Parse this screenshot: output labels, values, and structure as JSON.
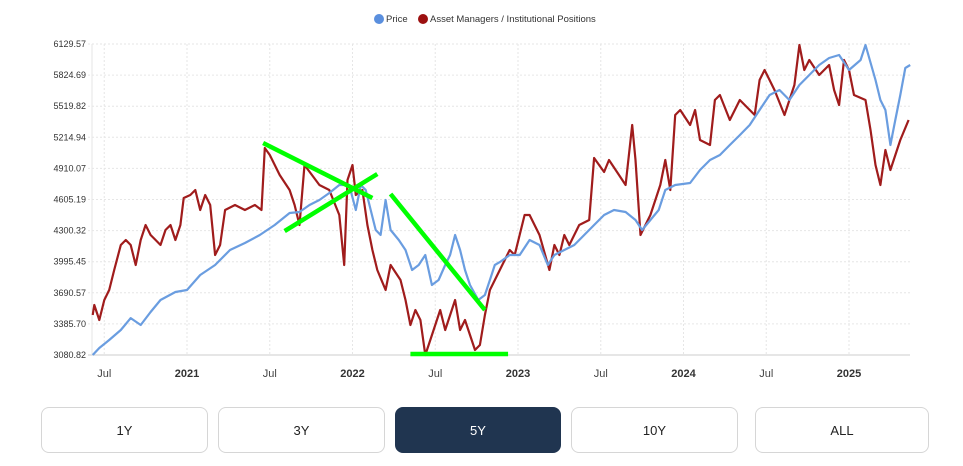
{
  "chart_data": {
    "type": "line",
    "title": "",
    "legend": {
      "placement": "top-center",
      "entries": [
        "Price",
        "Asset Managers / Institutional Positions"
      ]
    },
    "ylim": [
      3080.82,
      6129.57
    ],
    "xlim": [
      2020.426,
      2025.38
    ],
    "y_ticks": [
      "6129.57",
      "5824.69",
      "5519.82",
      "5214.94",
      "4910.07",
      "4605.19",
      "4300.32",
      "3995.45",
      "3690.57",
      "3385.70",
      "3080.82"
    ],
    "x_ticks": [
      {
        "label": "Jul",
        "x": 2020.5,
        "major": false
      },
      {
        "label": "2021",
        "x": 2021.0,
        "major": true
      },
      {
        "label": "Jul",
        "x": 2021.5,
        "major": false
      },
      {
        "label": "2022",
        "x": 2022.0,
        "major": true
      },
      {
        "label": "Jul",
        "x": 2022.5,
        "major": false
      },
      {
        "label": "2023",
        "x": 2023.0,
        "major": true
      },
      {
        "label": "Jul",
        "x": 2023.5,
        "major": false
      },
      {
        "label": "2024",
        "x": 2024.0,
        "major": true
      },
      {
        "label": "Jul",
        "x": 2024.5,
        "major": false
      },
      {
        "label": "2025",
        "x": 2025.0,
        "major": true
      }
    ],
    "grid": true,
    "series": [
      {
        "name": "Price",
        "color": "#6a9de0",
        "points": [
          [
            2020.43,
            3081
          ],
          [
            2020.47,
            3149
          ],
          [
            2020.53,
            3228
          ],
          [
            2020.6,
            3326
          ],
          [
            2020.66,
            3443
          ],
          [
            2020.72,
            3375
          ],
          [
            2020.78,
            3502
          ],
          [
            2020.84,
            3620
          ],
          [
            2020.93,
            3698
          ],
          [
            2021.0,
            3718
          ],
          [
            2021.08,
            3865
          ],
          [
            2021.17,
            3963
          ],
          [
            2021.26,
            4110
          ],
          [
            2021.35,
            4179
          ],
          [
            2021.44,
            4257
          ],
          [
            2021.53,
            4355
          ],
          [
            2021.62,
            4473
          ],
          [
            2021.68,
            4483
          ],
          [
            2021.74,
            4551
          ],
          [
            2021.8,
            4600
          ],
          [
            2021.86,
            4669
          ],
          [
            2021.92,
            4747
          ],
          [
            2021.98,
            4747
          ],
          [
            2022.02,
            4502
          ],
          [
            2022.05,
            4747
          ],
          [
            2022.08,
            4698
          ],
          [
            2022.11,
            4502
          ],
          [
            2022.14,
            4306
          ],
          [
            2022.17,
            4257
          ],
          [
            2022.2,
            4600
          ],
          [
            2022.23,
            4306
          ],
          [
            2022.28,
            4208
          ],
          [
            2022.32,
            4110
          ],
          [
            2022.36,
            3914
          ],
          [
            2022.4,
            3963
          ],
          [
            2022.44,
            4061
          ],
          [
            2022.48,
            3767
          ],
          [
            2022.52,
            3816
          ],
          [
            2022.56,
            3963
          ],
          [
            2022.59,
            4061
          ],
          [
            2022.62,
            4257
          ],
          [
            2022.65,
            4110
          ],
          [
            2022.68,
            3914
          ],
          [
            2022.71,
            3767
          ],
          [
            2022.76,
            3620
          ],
          [
            2022.8,
            3669
          ],
          [
            2022.83,
            3816
          ],
          [
            2022.86,
            3963
          ],
          [
            2022.89,
            3992
          ],
          [
            2022.95,
            4061
          ],
          [
            2023.01,
            4061
          ],
          [
            2023.07,
            4208
          ],
          [
            2023.13,
            4159
          ],
          [
            2023.18,
            3963
          ],
          [
            2023.22,
            4061
          ],
          [
            2023.28,
            4110
          ],
          [
            2023.34,
            4159
          ],
          [
            2023.4,
            4257
          ],
          [
            2023.46,
            4355
          ],
          [
            2023.52,
            4453
          ],
          [
            2023.58,
            4502
          ],
          [
            2023.65,
            4483
          ],
          [
            2023.71,
            4404
          ],
          [
            2023.75,
            4306
          ],
          [
            2023.8,
            4404
          ],
          [
            2023.85,
            4502
          ],
          [
            2023.89,
            4698
          ],
          [
            2023.95,
            4747
          ],
          [
            2024.04,
            4767
          ],
          [
            2024.1,
            4894
          ],
          [
            2024.16,
            4992
          ],
          [
            2024.22,
            5041
          ],
          [
            2024.28,
            5139
          ],
          [
            2024.34,
            5237
          ],
          [
            2024.4,
            5336
          ],
          [
            2024.46,
            5483
          ],
          [
            2024.52,
            5630
          ],
          [
            2024.58,
            5679
          ],
          [
            2024.64,
            5581
          ],
          [
            2024.7,
            5728
          ],
          [
            2024.76,
            5826
          ],
          [
            2024.82,
            5924
          ],
          [
            2024.88,
            5992
          ],
          [
            2024.94,
            6022
          ],
          [
            2025.0,
            5875
          ],
          [
            2025.07,
            5973
          ],
          [
            2025.1,
            6120
          ],
          [
            2025.16,
            5777
          ],
          [
            2025.19,
            5581
          ],
          [
            2025.22,
            5483
          ],
          [
            2025.25,
            5139
          ],
          [
            2025.28,
            5385
          ],
          [
            2025.31,
            5630
          ],
          [
            2025.34,
            5894
          ],
          [
            2025.37,
            5924
          ]
        ]
      },
      {
        "name": "Asset Managers / Institutional Positions",
        "color": "#a01c1c",
        "points": [
          [
            2020.43,
            3473
          ],
          [
            2020.44,
            3571
          ],
          [
            2020.47,
            3424
          ],
          [
            2020.5,
            3620
          ],
          [
            2020.53,
            3718
          ],
          [
            2020.56,
            3914
          ],
          [
            2020.6,
            4159
          ],
          [
            2020.63,
            4208
          ],
          [
            2020.66,
            4159
          ],
          [
            2020.69,
            3963
          ],
          [
            2020.72,
            4208
          ],
          [
            2020.75,
            4355
          ],
          [
            2020.78,
            4257
          ],
          [
            2020.81,
            4208
          ],
          [
            2020.84,
            4159
          ],
          [
            2020.87,
            4306
          ],
          [
            2020.9,
            4355
          ],
          [
            2020.93,
            4208
          ],
          [
            2020.96,
            4355
          ],
          [
            2020.98,
            4620
          ],
          [
            2021.02,
            4649
          ],
          [
            2021.05,
            4698
          ],
          [
            2021.08,
            4502
          ],
          [
            2021.11,
            4649
          ],
          [
            2021.14,
            4551
          ],
          [
            2021.17,
            4061
          ],
          [
            2021.2,
            4159
          ],
          [
            2021.23,
            4502
          ],
          [
            2021.29,
            4551
          ],
          [
            2021.35,
            4502
          ],
          [
            2021.41,
            4551
          ],
          [
            2021.45,
            4502
          ],
          [
            2021.47,
            5110
          ],
          [
            2021.5,
            5041
          ],
          [
            2021.56,
            4845
          ],
          [
            2021.62,
            4698
          ],
          [
            2021.65,
            4551
          ],
          [
            2021.68,
            4355
          ],
          [
            2021.71,
            4943
          ],
          [
            2021.8,
            4747
          ],
          [
            2021.86,
            4698
          ],
          [
            2021.92,
            4453
          ],
          [
            2021.95,
            3963
          ],
          [
            2021.97,
            4796
          ],
          [
            2022.0,
            4943
          ],
          [
            2022.02,
            4649
          ],
          [
            2022.06,
            4698
          ],
          [
            2022.09,
            4355
          ],
          [
            2022.12,
            4110
          ],
          [
            2022.15,
            3914
          ],
          [
            2022.2,
            3718
          ],
          [
            2022.23,
            3963
          ],
          [
            2022.29,
            3816
          ],
          [
            2022.32,
            3620
          ],
          [
            2022.35,
            3375
          ],
          [
            2022.38,
            3522
          ],
          [
            2022.41,
            3424
          ],
          [
            2022.44,
            3081
          ],
          [
            2022.47,
            3228
          ],
          [
            2022.53,
            3522
          ],
          [
            2022.56,
            3326
          ],
          [
            2022.62,
            3620
          ],
          [
            2022.65,
            3326
          ],
          [
            2022.68,
            3424
          ],
          [
            2022.74,
            3130
          ],
          [
            2022.77,
            3179
          ],
          [
            2022.8,
            3473
          ],
          [
            2022.83,
            3718
          ],
          [
            2022.89,
            3914
          ],
          [
            2022.95,
            4110
          ],
          [
            2022.98,
            4061
          ],
          [
            2023.04,
            4453
          ],
          [
            2023.07,
            4453
          ],
          [
            2023.13,
            4257
          ],
          [
            2023.19,
            3914
          ],
          [
            2023.22,
            4159
          ],
          [
            2023.25,
            4061
          ],
          [
            2023.28,
            4257
          ],
          [
            2023.31,
            4159
          ],
          [
            2023.37,
            4355
          ],
          [
            2023.43,
            4404
          ],
          [
            2023.46,
            5012
          ],
          [
            2023.52,
            4875
          ],
          [
            2023.55,
            4992
          ],
          [
            2023.61,
            4845
          ],
          [
            2023.65,
            4747
          ],
          [
            2023.69,
            5336
          ],
          [
            2023.71,
            4992
          ],
          [
            2023.74,
            4257
          ],
          [
            2023.8,
            4453
          ],
          [
            2023.86,
            4747
          ],
          [
            2023.89,
            4992
          ],
          [
            2023.92,
            4698
          ],
          [
            2023.95,
            5434
          ],
          [
            2023.98,
            5483
          ],
          [
            2024.04,
            5336
          ],
          [
            2024.07,
            5483
          ],
          [
            2024.1,
            5188
          ],
          [
            2024.16,
            5139
          ],
          [
            2024.19,
            5581
          ],
          [
            2024.22,
            5630
          ],
          [
            2024.28,
            5385
          ],
          [
            2024.34,
            5581
          ],
          [
            2024.43,
            5434
          ],
          [
            2024.46,
            5777
          ],
          [
            2024.49,
            5875
          ],
          [
            2024.55,
            5679
          ],
          [
            2024.61,
            5434
          ],
          [
            2024.67,
            5728
          ],
          [
            2024.7,
            6120
          ],
          [
            2024.73,
            5875
          ],
          [
            2024.76,
            5973
          ],
          [
            2024.82,
            5826
          ],
          [
            2024.88,
            5924
          ],
          [
            2024.91,
            5679
          ],
          [
            2024.94,
            5532
          ],
          [
            2024.97,
            5973
          ],
          [
            2025.0,
            5875
          ],
          [
            2025.03,
            5630
          ],
          [
            2025.1,
            5581
          ],
          [
            2025.13,
            5287
          ],
          [
            2025.16,
            4943
          ],
          [
            2025.19,
            4747
          ],
          [
            2025.22,
            5090
          ],
          [
            2025.25,
            4894
          ],
          [
            2025.31,
            5188
          ],
          [
            2025.36,
            5385
          ]
        ]
      }
    ],
    "annotations": {
      "color": "#00ff00",
      "lines": [
        [
          [
            2021.46,
            5159
          ],
          [
            2022.12,
            4620
          ]
        ],
        [
          [
            2021.59,
            4296
          ],
          [
            2022.15,
            4855
          ]
        ],
        [
          [
            2022.23,
            4659
          ],
          [
            2022.8,
            3522
          ]
        ],
        [
          [
            2022.35,
            3091
          ],
          [
            2022.94,
            3091
          ]
        ]
      ]
    }
  },
  "range_buttons": [
    {
      "label": "1Y",
      "active": false
    },
    {
      "label": "3Y",
      "active": false
    },
    {
      "label": "5Y",
      "active": true
    },
    {
      "label": "10Y",
      "active": false
    },
    {
      "label": "ALL",
      "active": false
    }
  ]
}
